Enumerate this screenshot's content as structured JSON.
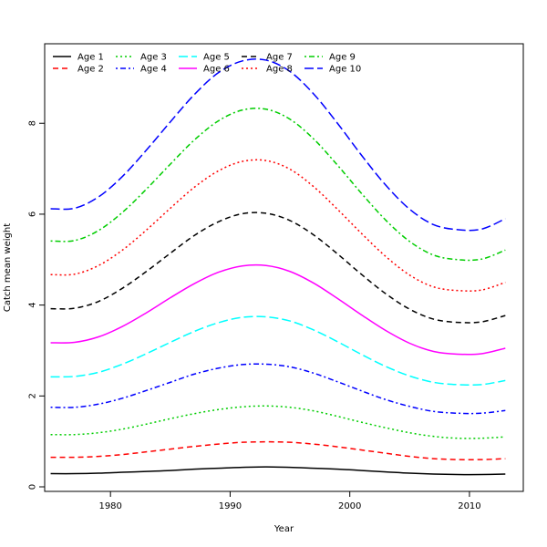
{
  "chart_data": {
    "type": "line",
    "title": "",
    "xlabel": "Year",
    "ylabel": "Catch mean weight",
    "xlim": [
      1974.5,
      2014.5
    ],
    "ylim": [
      -0.1,
      9.75
    ],
    "xticks": [
      1980,
      1990,
      2000,
      2010
    ],
    "yticks": [
      0,
      2,
      4,
      6,
      8
    ],
    "grid": false,
    "legend_position": "top-left",
    "x": [
      1975,
      1977,
      1979,
      1981,
      1983,
      1985,
      1987,
      1989,
      1991,
      1993,
      1995,
      1997,
      1999,
      2001,
      2003,
      2005,
      2007,
      2009,
      2011,
      2013
    ],
    "series": [
      {
        "name": "Age 1",
        "color": "#000000",
        "dash": "solid",
        "values": [
          0.29,
          0.29,
          0.3,
          0.32,
          0.34,
          0.36,
          0.39,
          0.41,
          0.43,
          0.44,
          0.43,
          0.41,
          0.39,
          0.36,
          0.33,
          0.3,
          0.28,
          0.27,
          0.27,
          0.28
        ]
      },
      {
        "name": "Age 2",
        "color": "#ff0000",
        "dash": "dashed",
        "values": [
          0.65,
          0.65,
          0.67,
          0.71,
          0.77,
          0.83,
          0.89,
          0.94,
          0.98,
          0.99,
          0.98,
          0.94,
          0.88,
          0.81,
          0.74,
          0.67,
          0.62,
          0.6,
          0.6,
          0.62
        ]
      },
      {
        "name": "Age 3",
        "color": "#00cd00",
        "dash": "dotted",
        "values": [
          1.15,
          1.15,
          1.19,
          1.27,
          1.38,
          1.5,
          1.61,
          1.7,
          1.76,
          1.78,
          1.75,
          1.67,
          1.55,
          1.42,
          1.3,
          1.19,
          1.11,
          1.07,
          1.07,
          1.1
        ]
      },
      {
        "name": "Age 4",
        "color": "#0000ff",
        "dash": "dotdash",
        "values": [
          1.75,
          1.75,
          1.82,
          1.95,
          2.12,
          2.3,
          2.48,
          2.61,
          2.69,
          2.7,
          2.64,
          2.5,
          2.31,
          2.11,
          1.92,
          1.77,
          1.66,
          1.62,
          1.62,
          1.68
        ]
      },
      {
        "name": "Age 5",
        "color": "#00ffff",
        "dash": "longdash",
        "values": [
          2.42,
          2.43,
          2.52,
          2.7,
          2.93,
          3.18,
          3.42,
          3.61,
          3.73,
          3.74,
          3.65,
          3.45,
          3.19,
          2.91,
          2.65,
          2.44,
          2.3,
          2.25,
          2.25,
          2.34
        ]
      },
      {
        "name": "Age 6",
        "color": "#ff00ff",
        "dash": "solid",
        "values": [
          3.17,
          3.18,
          3.3,
          3.53,
          3.83,
          4.16,
          4.47,
          4.72,
          4.86,
          4.87,
          4.74,
          4.48,
          4.14,
          3.78,
          3.44,
          3.16,
          2.98,
          2.92,
          2.93,
          3.05
        ]
      },
      {
        "name": "Age 7",
        "color": "#000000",
        "dash": "dashed",
        "values": [
          3.92,
          3.93,
          4.08,
          4.37,
          4.74,
          5.14,
          5.53,
          5.83,
          6.01,
          6.02,
          5.86,
          5.54,
          5.12,
          4.67,
          4.25,
          3.91,
          3.69,
          3.62,
          3.63,
          3.77
        ]
      },
      {
        "name": "Age 8",
        "color": "#ff0000",
        "dash": "dotted",
        "values": [
          4.67,
          4.68,
          4.87,
          5.21,
          5.65,
          6.13,
          6.59,
          6.95,
          7.16,
          7.18,
          6.99,
          6.6,
          6.1,
          5.57,
          5.07,
          4.66,
          4.4,
          4.32,
          4.33,
          4.5
        ]
      },
      {
        "name": "Age 9",
        "color": "#00cd00",
        "dash": "dotdash",
        "values": [
          5.41,
          5.42,
          5.64,
          6.04,
          6.55,
          7.1,
          7.63,
          8.05,
          8.29,
          8.31,
          8.09,
          7.65,
          7.07,
          6.45,
          5.87,
          5.4,
          5.1,
          5.0,
          5.01,
          5.21
        ]
      },
      {
        "name": "Age 10",
        "color": "#0000ff",
        "dash": "longdash",
        "values": [
          6.12,
          6.13,
          6.38,
          6.83,
          7.41,
          8.03,
          8.63,
          9.11,
          9.37,
          9.39,
          9.14,
          8.64,
          7.99,
          7.29,
          6.64,
          6.11,
          5.77,
          5.66,
          5.67,
          5.9
        ]
      }
    ]
  }
}
